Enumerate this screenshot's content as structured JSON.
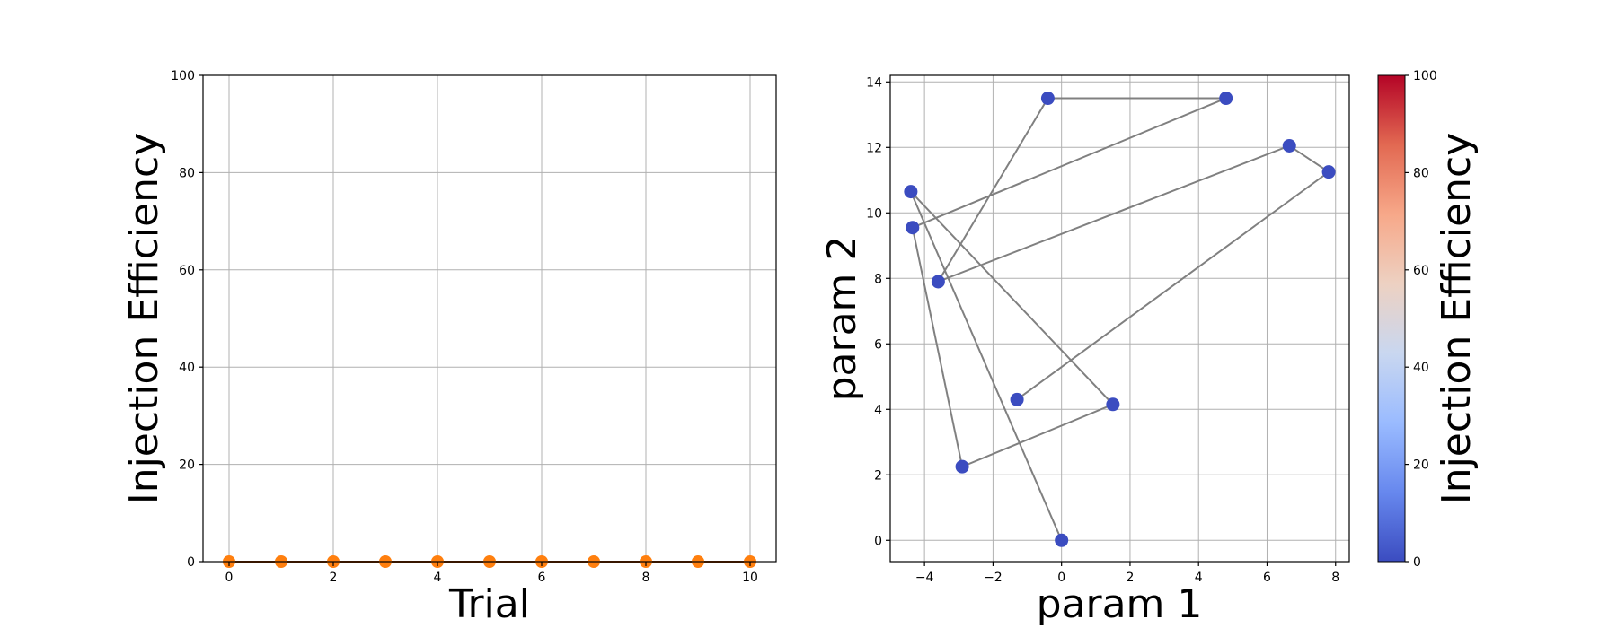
{
  "chart_data": [
    {
      "type": "line",
      "title": "",
      "xlabel": "Trial",
      "ylabel": "Injection Efficiency",
      "xlim": [
        -0.5,
        10.5
      ],
      "ylim": [
        0,
        100
      ],
      "xticks": [
        0,
        2,
        4,
        6,
        8,
        10
      ],
      "yticks": [
        0,
        20,
        40,
        60,
        80,
        100
      ],
      "grid": true,
      "series": [
        {
          "x": [
            0,
            1,
            2,
            3,
            4,
            5,
            6,
            7,
            8,
            9,
            10
          ],
          "y": [
            0,
            0,
            0,
            0,
            0,
            0,
            0,
            0,
            0,
            0,
            0
          ],
          "color": "#ff7f0e",
          "line_color": "#8c3a00"
        }
      ]
    },
    {
      "type": "scatter",
      "title": "",
      "xlabel": "param 1",
      "ylabel": "param 2",
      "xlim": [
        -5.0,
        8.4
      ],
      "ylim": [
        -0.65,
        14.2
      ],
      "xticks": [
        -4,
        -2,
        0,
        2,
        4,
        6,
        8
      ],
      "yticks": [
        0,
        2,
        4,
        6,
        8,
        10,
        12,
        14
      ],
      "grid": true,
      "path_color": "#808080",
      "marker_color": "#3b4cc0",
      "points": [
        {
          "x": 0.0,
          "y": 0.0,
          "value": 0
        },
        {
          "x": -4.4,
          "y": 10.65,
          "value": 0
        },
        {
          "x": 1.5,
          "y": 4.15,
          "value": 0
        },
        {
          "x": -2.9,
          "y": 2.25,
          "value": 0
        },
        {
          "x": -4.35,
          "y": 9.55,
          "value": 0
        },
        {
          "x": 4.8,
          "y": 13.5,
          "value": 0
        },
        {
          "x": -0.4,
          "y": 13.5,
          "value": 0
        },
        {
          "x": -3.6,
          "y": 7.9,
          "value": 0
        },
        {
          "x": 6.65,
          "y": 12.05,
          "value": 0
        },
        {
          "x": 7.8,
          "y": 11.25,
          "value": 0
        },
        {
          "x": -1.3,
          "y": 4.3,
          "value": 0
        }
      ],
      "colorbar": {
        "label": "Injection Efficiency",
        "range": [
          0,
          100
        ],
        "ticks": [
          0,
          20,
          40,
          60,
          80,
          100
        ],
        "colormap": "coolwarm",
        "stops": [
          "#3b4cc0",
          "#6788ee",
          "#9abbff",
          "#c9d7f0",
          "#edd1c2",
          "#f7a889",
          "#e26952",
          "#b40426"
        ]
      }
    }
  ]
}
